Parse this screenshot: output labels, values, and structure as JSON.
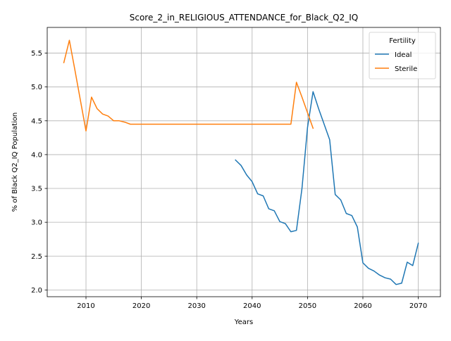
{
  "chart_data": {
    "type": "line",
    "title": "Score_2_in_RELIGIOUS_ATTENDANCE_for_Black_Q2_IQ",
    "xlabel": "Years",
    "ylabel": "% of Black Q2_IQ Population",
    "xlim": [
      2003,
      2074
    ],
    "ylim": [
      1.9,
      5.88
    ],
    "xticks": [
      2010,
      2020,
      2030,
      2040,
      2050,
      2060,
      2070
    ],
    "yticks": [
      2.0,
      2.5,
      3.0,
      3.5,
      4.0,
      4.5,
      5.0,
      5.5
    ],
    "grid": true,
    "legend": {
      "title": "Fertility",
      "placement": "top-right"
    },
    "series": [
      {
        "name": "Ideal",
        "color": "#1f77b4",
        "x": [
          2037,
          2038,
          2039,
          2040,
          2041,
          2042,
          2043,
          2044,
          2045,
          2046,
          2047,
          2048,
          2049,
          2050,
          2051,
          2052,
          2053,
          2054,
          2055,
          2056,
          2057,
          2058,
          2059,
          2060,
          2061,
          2062,
          2063,
          2064,
          2065,
          2066,
          2067,
          2068,
          2069,
          2070
        ],
        "values": [
          3.92,
          3.84,
          3.7,
          3.6,
          3.42,
          3.39,
          3.2,
          3.17,
          3.01,
          2.98,
          2.86,
          2.88,
          3.5,
          4.4,
          4.93,
          4.68,
          4.45,
          4.22,
          3.41,
          3.33,
          3.13,
          3.1,
          2.93,
          2.4,
          2.32,
          2.28,
          2.22,
          2.18,
          2.16,
          2.08,
          2.1,
          2.41,
          2.36,
          2.69
        ]
      },
      {
        "name": "Sterile",
        "color": "#ff7f0e",
        "x": [
          2006,
          2007,
          2008,
          2009,
          2010,
          2011,
          2012,
          2013,
          2014,
          2015,
          2016,
          2017,
          2018,
          2019,
          2020,
          2030,
          2040,
          2047,
          2048,
          2049,
          2050,
          2051
        ],
        "values": [
          5.36,
          5.69,
          5.25,
          4.8,
          4.35,
          4.85,
          4.68,
          4.6,
          4.57,
          4.5,
          4.5,
          4.48,
          4.45,
          4.45,
          4.45,
          4.45,
          4.45,
          4.45,
          5.07,
          4.85,
          4.62,
          4.39
        ]
      }
    ]
  }
}
